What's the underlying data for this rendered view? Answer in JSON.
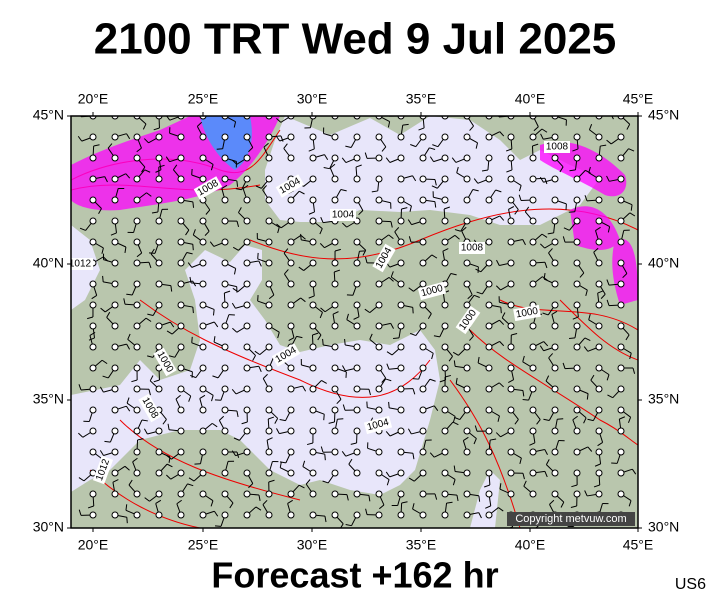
{
  "title": "2100 TRT Wed 9 Jul 2025",
  "map": {
    "lon_labels": [
      "20°E",
      "25°E",
      "30°E",
      "35°E",
      "40°E",
      "45°E"
    ],
    "lat_labels": [
      "45°N",
      "40°N",
      "35°N",
      "30°N"
    ],
    "isobar_labels": [
      "1008",
      "1004",
      "1004",
      "1008",
      "1008",
      "1004",
      "1000",
      "1000",
      "1000",
      "1004",
      "1000",
      "1008",
      "1004",
      "1012",
      "1012"
    ],
    "copyright": "Copyright metvuw.com"
  },
  "footer": {
    "forecast": "Forecast +162 hr",
    "model": "US6"
  }
}
